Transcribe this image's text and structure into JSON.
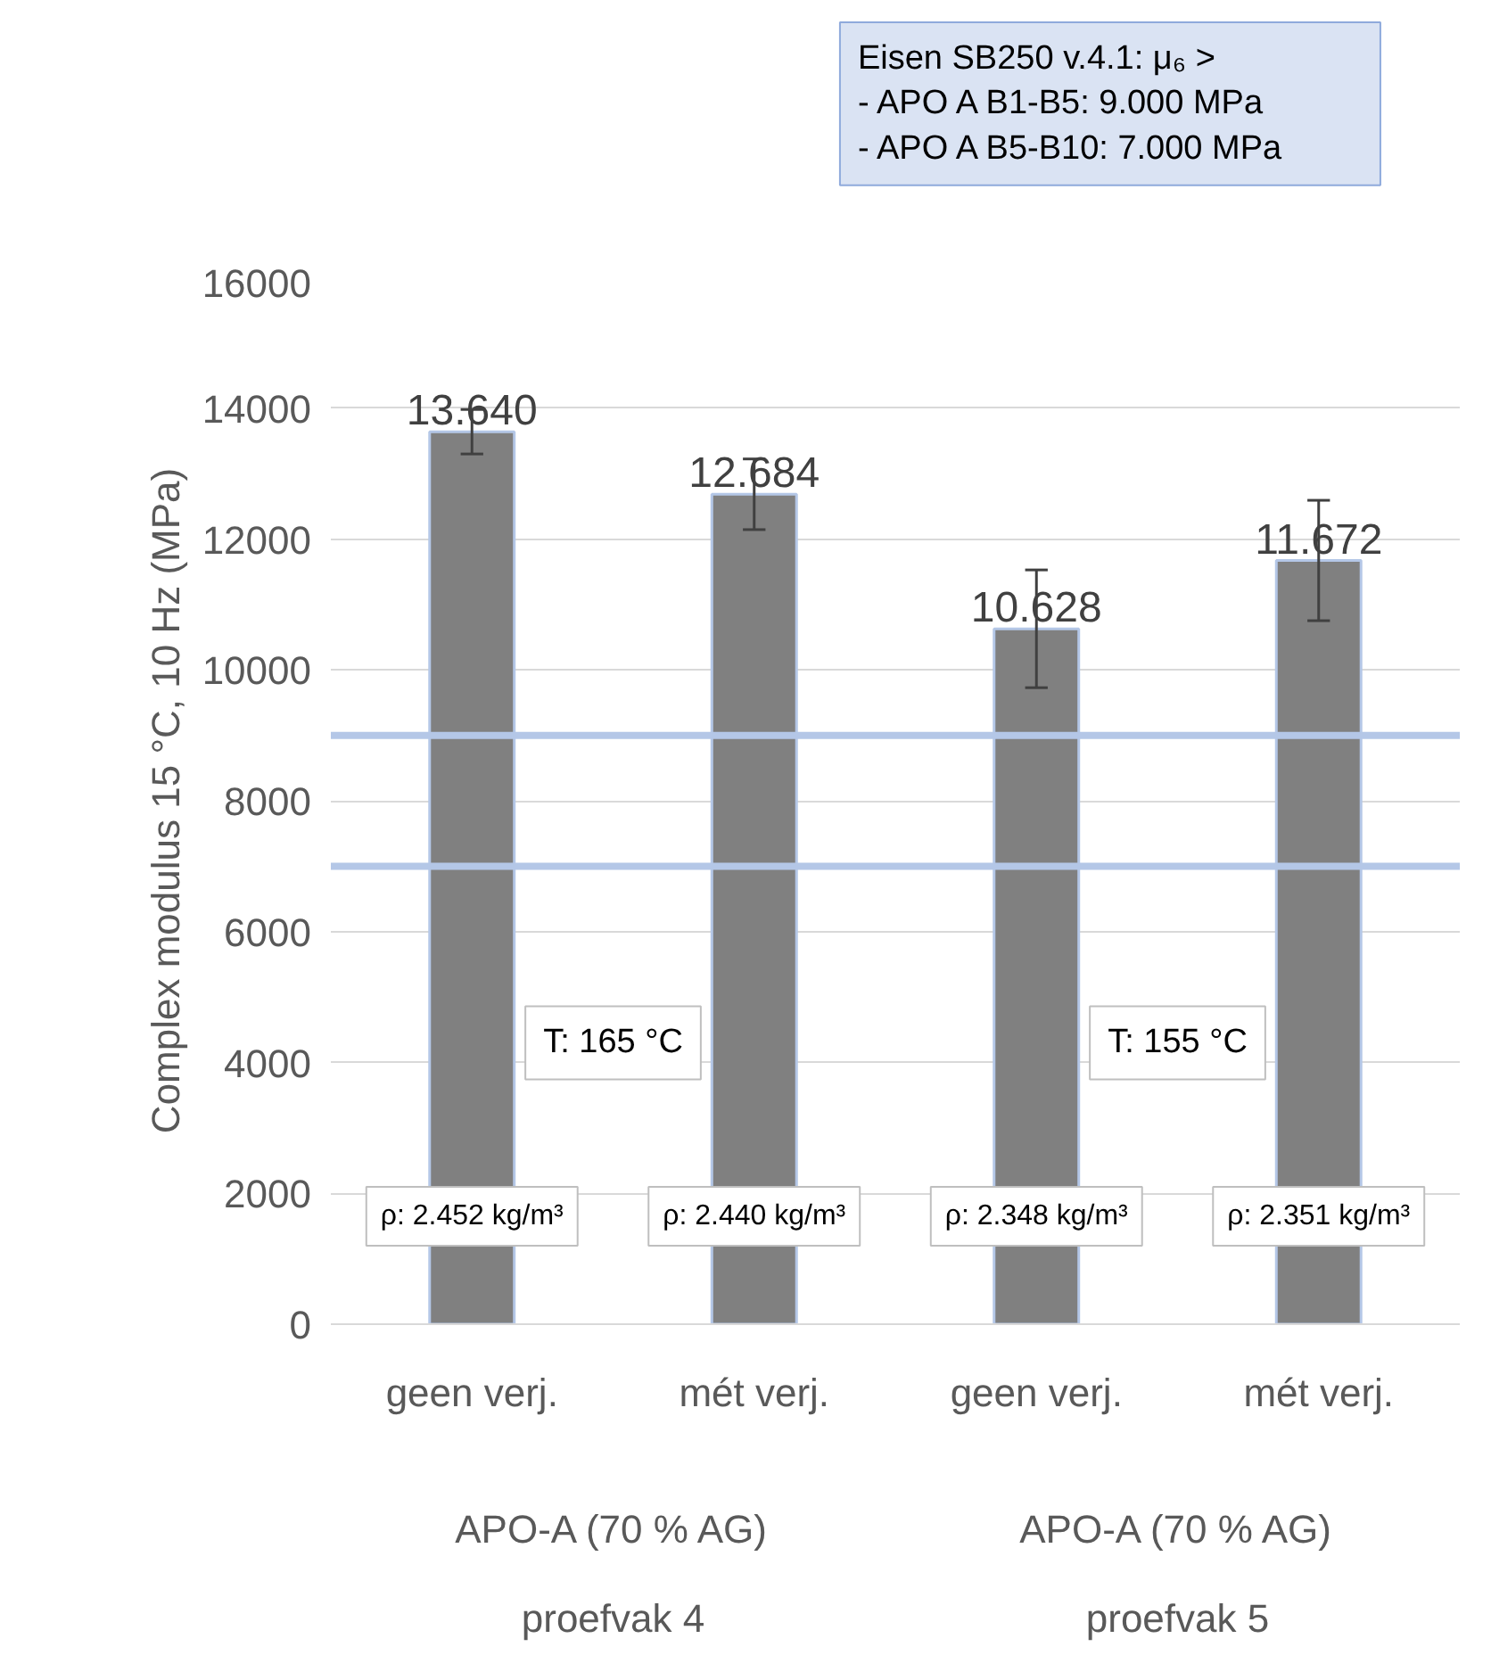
{
  "chart_data": {
    "type": "bar",
    "ylabel": "Complex modulus 15 °C, 10 Hz (MPa)",
    "categories": [
      "geen verj.",
      "mét verj.",
      "geen verj.",
      "mét verj."
    ],
    "values": [
      13640,
      12684,
      10628,
      11672
    ],
    "color": "#808080",
    "errors": [
      340,
      540,
      900,
      920
    ],
    "value_labels": [
      "13.640",
      "12.684",
      "10.628",
      "11.672"
    ],
    "ylim": [
      0,
      16000
    ],
    "yticks": [
      0,
      2000,
      4000,
      6000,
      8000,
      10000,
      12000,
      14000,
      16000
    ],
    "grid": "y",
    "ref_lines": [
      {
        "axis": "y",
        "value": 9000,
        "color": "#b4c7e7"
      },
      {
        "axis": "y",
        "value": 7000,
        "color": "#b4c7e7"
      }
    ],
    "annotations": [
      "Eisen SB250 v.4.1: μ₆ >\n        - APO A B1-B5: 9.000 MPa\n        - APO A B5-B10: 7.000 MPa",
      "T: 165 °C",
      "T: 155 °C",
      "ρ: 2.452 kg/m³",
      "ρ: 2.440 kg/m³",
      "ρ: 2.348 kg/m³",
      "ρ: 2.351 kg/m³",
      "APO-A (70 % AG)",
      "proefvak 4",
      "APO-A (70 % AG)",
      "proefvak 5"
    ]
  }
}
